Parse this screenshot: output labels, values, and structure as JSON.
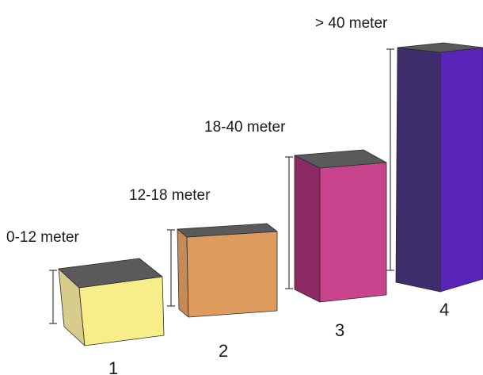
{
  "blocks": [
    {
      "index": "1",
      "range": "0-12 meter",
      "colors": {
        "top": "#5a5a5a",
        "front": "#f7ee8a",
        "side": "#d8cc8c"
      }
    },
    {
      "index": "2",
      "range": "12-18 meter",
      "colors": {
        "top": "#5a5a5a",
        "front": "#dd9b5e",
        "side": "#c48b56"
      }
    },
    {
      "index": "3",
      "range": "18-40 meter",
      "colors": {
        "top": "#5a5a5a",
        "front": "#c9438d",
        "side": "#8b2a63"
      }
    },
    {
      "index": "4",
      "range": "> 40 meter",
      "colors": {
        "top": "#5a5a5a",
        "front": "#5825b8",
        "side": "#3d2e6b"
      }
    }
  ]
}
